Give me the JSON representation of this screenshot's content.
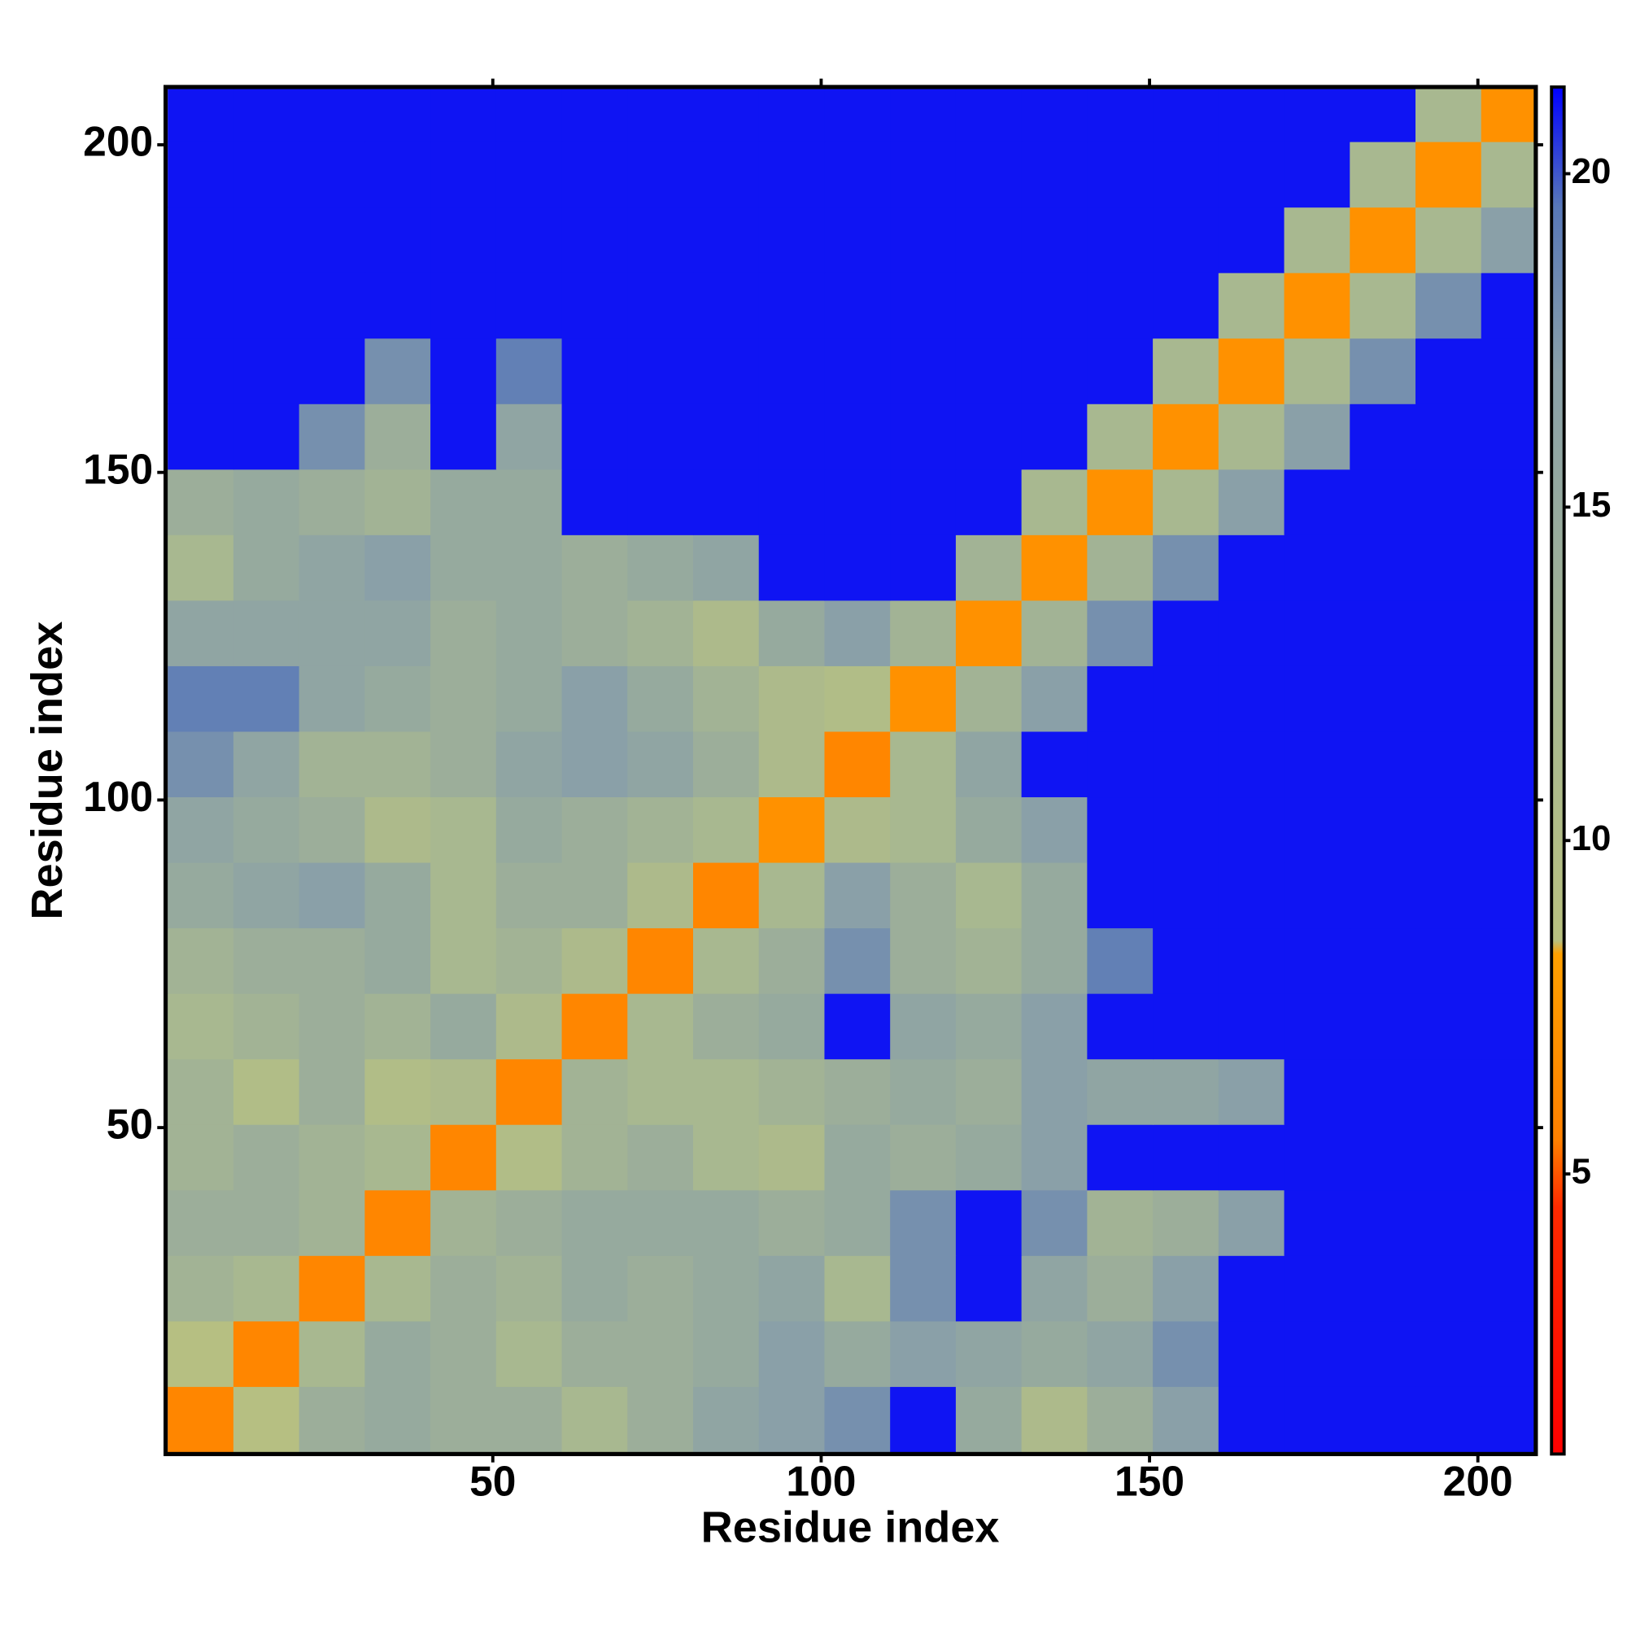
{
  "chart_data": {
    "type": "heatmap",
    "x_label": "Residue index",
    "y_label": "Residue index",
    "x": [
      1,
      11,
      21,
      31,
      41,
      51,
      61,
      71,
      81,
      91,
      101,
      111,
      121,
      131,
      141,
      151,
      161,
      171,
      181,
      191,
      201
    ],
    "y": [
      1,
      11,
      21,
      31,
      41,
      51,
      61,
      71,
      81,
      91,
      101,
      111,
      121,
      131,
      141,
      151,
      161,
      171,
      181,
      191,
      201
    ],
    "z": [
      [
        6,
        9,
        14,
        15,
        14,
        14,
        12,
        14,
        16,
        17,
        18,
        21,
        15,
        11,
        14,
        17,
        21,
        21,
        21,
        21,
        21
      ],
      [
        9,
        6,
        12,
        15,
        14,
        12,
        14,
        14,
        15,
        17,
        15,
        17,
        16,
        15,
        16,
        18,
        21,
        21,
        21,
        21,
        21
      ],
      [
        13,
        12,
        6,
        12,
        14,
        13,
        15,
        14,
        15,
        16,
        12,
        18,
        21,
        16,
        14,
        17,
        21,
        21,
        21,
        21,
        21
      ],
      [
        14,
        14,
        13,
        6,
        13,
        14,
        15,
        15,
        15,
        14,
        15,
        18,
        21,
        18,
        13,
        14,
        17,
        21,
        21,
        21,
        21
      ],
      [
        13,
        14,
        13,
        12,
        6,
        10,
        13,
        14,
        12,
        11,
        15,
        14,
        15,
        17,
        21,
        21,
        21,
        21,
        21,
        21,
        21
      ],
      [
        13,
        10,
        14,
        10,
        11,
        6,
        13,
        12,
        12,
        13,
        14,
        15,
        14,
        17,
        16,
        16,
        17,
        21,
        21,
        21,
        21
      ],
      [
        12,
        13,
        14,
        13,
        15,
        11,
        6,
        12,
        14,
        15,
        21,
        16,
        15,
        17,
        21,
        21,
        21,
        21,
        21,
        21,
        21
      ],
      [
        13,
        14,
        14,
        15,
        12,
        13,
        11,
        6,
        12,
        14,
        18,
        14,
        13,
        15,
        19,
        21,
        21,
        21,
        21,
        21,
        21
      ],
      [
        15,
        16,
        17,
        15,
        12,
        14,
        14,
        11,
        6,
        12,
        17,
        14,
        12,
        15,
        21,
        21,
        21,
        21,
        21,
        21,
        21
      ],
      [
        16,
        15,
        14,
        11,
        12,
        15,
        14,
        13,
        12,
        7,
        11,
        12,
        15,
        17,
        21,
        21,
        21,
        21,
        21,
        21,
        21
      ],
      [
        18,
        16,
        13,
        13,
        14,
        16,
        17,
        16,
        14,
        11,
        6,
        12,
        16,
        21,
        21,
        21,
        21,
        21,
        21,
        21,
        21
      ],
      [
        19,
        19,
        16,
        15,
        14,
        15,
        17,
        15,
        13,
        11,
        10,
        7,
        13,
        17,
        21,
        21,
        21,
        21,
        21,
        21,
        21
      ],
      [
        16,
        16,
        16,
        16,
        14,
        15,
        14,
        13,
        11,
        15,
        17,
        13,
        7,
        13,
        18,
        21,
        21,
        21,
        21,
        21,
        21
      ],
      [
        12,
        15,
        16,
        17,
        15,
        15,
        14,
        15,
        16,
        21,
        21,
        21,
        13,
        7,
        13,
        18,
        21,
        21,
        21,
        21,
        21
      ],
      [
        14,
        15,
        14,
        13,
        15,
        15,
        21,
        21,
        21,
        21,
        21,
        21,
        21,
        12,
        7,
        12,
        17,
        21,
        21,
        21,
        21
      ],
      [
        21,
        21,
        18,
        14,
        21,
        16,
        21,
        21,
        21,
        21,
        21,
        21,
        21,
        21,
        12,
        7,
        12,
        17,
        21,
        21,
        21
      ],
      [
        21,
        21,
        21,
        18,
        21,
        19,
        21,
        21,
        21,
        21,
        21,
        21,
        21,
        21,
        21,
        12,
        7,
        12,
        18,
        21,
        21
      ],
      [
        21,
        21,
        21,
        21,
        21,
        21,
        21,
        21,
        21,
        21,
        21,
        21,
        21,
        21,
        21,
        21,
        12,
        7,
        12,
        18,
        21
      ],
      [
        21,
        21,
        21,
        21,
        21,
        21,
        21,
        21,
        21,
        21,
        21,
        21,
        21,
        21,
        21,
        21,
        21,
        12,
        7,
        12,
        17
      ],
      [
        21,
        21,
        21,
        21,
        21,
        21,
        21,
        21,
        21,
        21,
        21,
        21,
        21,
        21,
        21,
        21,
        21,
        21,
        12,
        7,
        12
      ],
      [
        21,
        21,
        21,
        21,
        21,
        21,
        21,
        21,
        21,
        21,
        21,
        21,
        21,
        21,
        21,
        21,
        21,
        21,
        21,
        12,
        7
      ]
    ],
    "xlim": [
      0.5,
      208.5
    ],
    "ylim": [
      0.5,
      208.5
    ],
    "xticks": [
      50,
      100,
      150,
      200
    ],
    "yticks": [
      50,
      100,
      150,
      200
    ],
    "zlim": [
      0.8,
      21.3
    ],
    "zticks": [
      5,
      10,
      15,
      20
    ],
    "colorscale": [
      [
        0.8,
        "#ff0000"
      ],
      [
        4.5,
        "#ff2a00"
      ],
      [
        5.5,
        "#ff8000"
      ],
      [
        8.3,
        "#ffa000"
      ],
      [
        8.5,
        "#b8c080"
      ],
      [
        12,
        "#a8b890"
      ],
      [
        17,
        "#8aa0a8"
      ],
      [
        19.5,
        "#5878b8"
      ],
      [
        21.3,
        "#0000ff"
      ]
    ]
  }
}
